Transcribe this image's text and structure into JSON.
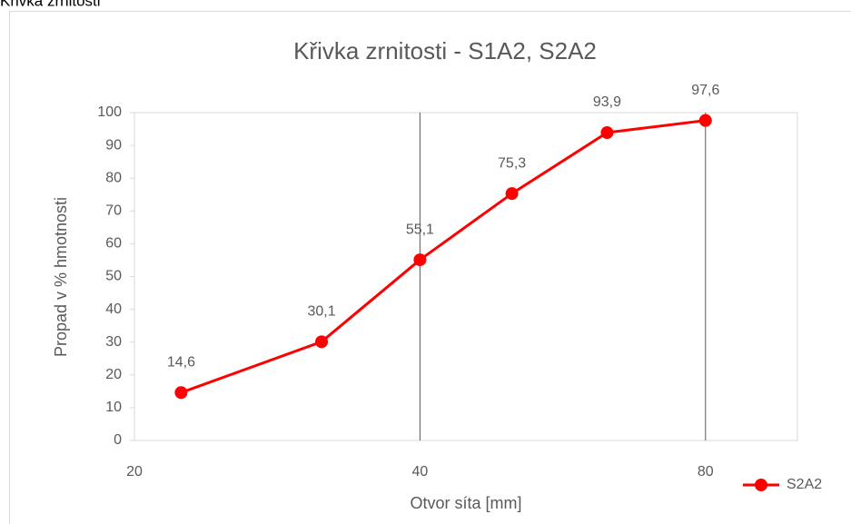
{
  "page_heading": "Křivka zrnitosti",
  "chart_data": {
    "type": "line",
    "title": "Křivka zrnitosti - S1A2, S2A2",
    "x_label": "Otvor síta [mm]",
    "y_label": "Propad v % hmotnosti",
    "x": [
      22.4,
      31.5,
      40,
      50,
      63,
      80
    ],
    "series": [
      {
        "name": "S2A2",
        "color": "#ff0000",
        "values": [
          14.6,
          30.1,
          55.1,
          75.3,
          93.9,
          97.6
        ],
        "value_labels": [
          "14,6",
          "30,1",
          "55,1",
          "75,3",
          "93,9",
          "97,6"
        ]
      }
    ],
    "xscale": "log",
    "xlim": [
      20,
      100
    ],
    "xticks": [
      20,
      40,
      80
    ],
    "ylim": [
      0,
      100
    ],
    "yticks": [
      0,
      10,
      20,
      30,
      40,
      50,
      60,
      70,
      80,
      90,
      100
    ],
    "xgrid": true,
    "legend": "bottom-right"
  }
}
